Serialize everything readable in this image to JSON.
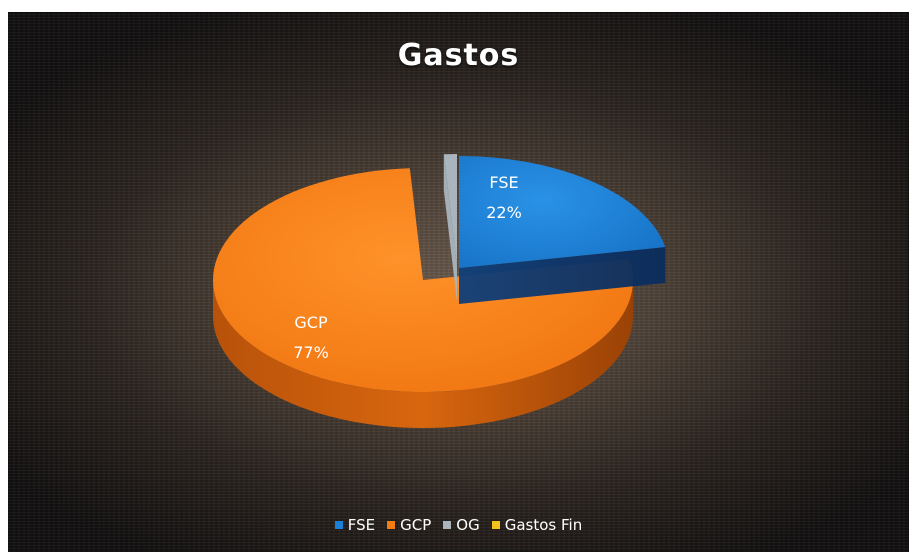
{
  "chart_data": {
    "type": "pie",
    "title": "Gastos",
    "series": [
      {
        "name": "FSE",
        "value": 22,
        "label": "22%",
        "color": "#1a7fd6"
      },
      {
        "name": "GCP",
        "value": 77,
        "label": "77%",
        "color": "#f27d12"
      },
      {
        "name": "OG",
        "value": 1,
        "label": "",
        "color": "#a9b4bd"
      },
      {
        "name": "Gastos Fin",
        "value": 0,
        "label": "",
        "color": "#f2c21a"
      }
    ],
    "legend_position": "bottom",
    "style": "3d-exploded"
  }
}
